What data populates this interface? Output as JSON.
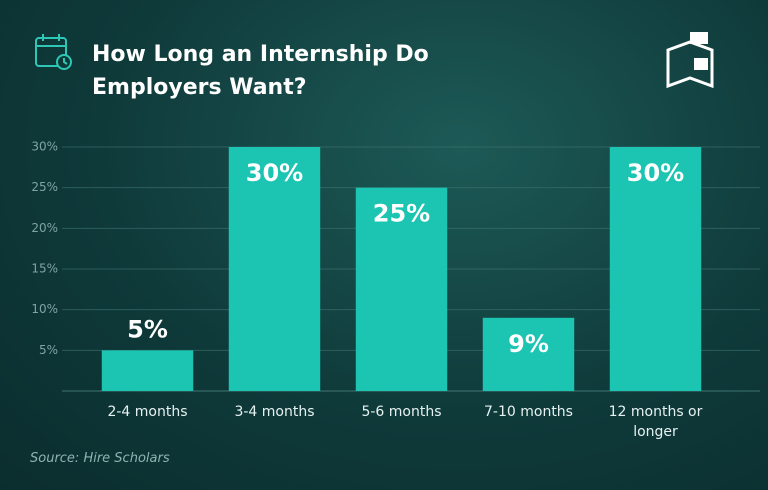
{
  "chart_data": {
    "type": "bar",
    "title": "How Long an Internship Do Employers Want?",
    "categories": [
      "2-4 months",
      "3-4 months",
      "5-6 months",
      "7-10 months",
      "12 months or longer"
    ],
    "values": [
      5,
      30,
      25,
      9,
      30
    ],
    "value_labels": [
      "5%",
      "30%",
      "25%",
      "9%",
      "30%"
    ],
    "color": "#1cc4b2",
    "ylim": [
      0,
      30
    ],
    "yticks": [
      {
        "value": 5,
        "label": "5%"
      },
      {
        "value": 10,
        "label": "10%"
      },
      {
        "value": 15,
        "label": "15%"
      },
      {
        "value": 20,
        "label": "20%"
      },
      {
        "value": 25,
        "label": "25%"
      },
      {
        "value": 30,
        "label": "30%"
      }
    ],
    "grid": true,
    "source": "Source: Hire Scholars"
  }
}
